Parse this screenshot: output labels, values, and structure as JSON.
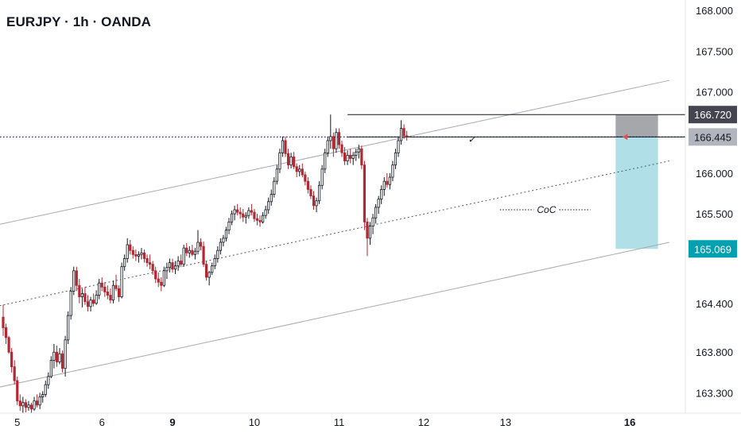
{
  "header": {
    "title": "EURJPY · 1h · OANDA"
  },
  "chart_data": {
    "type": "candlestick",
    "symbol": "EURJPY",
    "timeframe": "1h",
    "broker": "OANDA",
    "ylim": [
      163.05,
      168.05
    ],
    "y_ticks": [
      "168.000",
      "167.500",
      "167.000",
      "166.000",
      "165.500",
      "164.400",
      "163.800",
      "163.300"
    ],
    "x_ticks": [
      {
        "label": "5",
        "bold": false
      },
      {
        "label": "6",
        "bold": false
      },
      {
        "label": "9",
        "bold": true
      },
      {
        "label": "10",
        "bold": false
      },
      {
        "label": "11",
        "bold": false
      },
      {
        "label": "12",
        "bold": false
      },
      {
        "label": "13",
        "bold": false
      },
      {
        "label": "16",
        "bold": true
      }
    ],
    "x_tick_bars": [
      5,
      35,
      60,
      89,
      119,
      149,
      178,
      222
    ],
    "price_levels": [
      {
        "label": "166.720",
        "value": 166.72,
        "bg": "#434651",
        "fg": "#ffffff"
      },
      {
        "label": "166.445",
        "value": 166.445,
        "bg": "#b2b5be",
        "fg": "#131722"
      },
      {
        "label": "165.069",
        "value": 165.069,
        "bg": "#00a0b0",
        "fg": "#ffffff"
      }
    ],
    "annotations": {
      "choc": "CoC",
      "check": "✓"
    },
    "channel": {
      "upper": [
        [
          -4,
          165.35
        ],
        [
          236,
          167.14
        ]
      ],
      "lower": [
        [
          -4,
          163.35
        ],
        [
          236,
          165.15
        ]
      ],
      "mid": [
        [
          -4,
          164.35
        ],
        [
          236,
          166.15
        ]
      ]
    },
    "position_box": {
      "from_bar": 217,
      "to_bar": 232,
      "entry": 166.445,
      "stop": 166.72,
      "target": 165.069
    },
    "colors": {
      "up": "#131722",
      "down": "#b22833",
      "channel": "#a9aab0",
      "dotted_level": "#1a237e",
      "stop_zone": "#a6a7ab",
      "target_zone": "#b0dfe8"
    },
    "candles": [
      [
        164.23,
        164.38,
        164.0,
        164.1
      ],
      [
        164.1,
        164.15,
        163.9,
        163.98
      ],
      [
        163.98,
        164.0,
        163.78,
        163.8
      ],
      [
        163.8,
        163.85,
        163.55,
        163.62
      ],
      [
        163.62,
        163.7,
        163.4,
        163.45
      ],
      [
        163.45,
        163.5,
        163.15,
        163.2
      ],
      [
        163.2,
        163.28,
        163.08,
        163.14
      ],
      [
        163.14,
        163.25,
        163.05,
        163.18
      ],
      [
        163.18,
        163.22,
        163.06,
        163.12
      ],
      [
        163.12,
        163.2,
        163.08,
        163.15
      ],
      [
        163.15,
        163.18,
        163.05,
        163.1
      ],
      [
        163.1,
        163.25,
        163.08,
        163.2
      ],
      [
        163.2,
        163.28,
        163.12,
        163.15
      ],
      [
        163.15,
        163.3,
        163.1,
        163.25
      ],
      [
        163.25,
        163.32,
        163.18,
        163.28
      ],
      [
        163.28,
        163.45,
        163.25,
        163.4
      ],
      [
        163.4,
        163.55,
        163.35,
        163.5
      ],
      [
        163.5,
        163.75,
        163.48,
        163.7
      ],
      [
        163.7,
        163.9,
        163.6,
        163.8
      ],
      [
        163.8,
        163.88,
        163.62,
        163.68
      ],
      [
        163.68,
        163.85,
        163.65,
        163.78
      ],
      [
        163.78,
        163.82,
        163.55,
        163.6
      ],
      [
        163.6,
        164.0,
        163.5,
        163.95
      ],
      [
        163.95,
        164.3,
        163.9,
        164.25
      ],
      [
        164.25,
        164.6,
        164.2,
        164.55
      ],
      [
        164.55,
        164.85,
        164.5,
        164.8
      ],
      [
        164.8,
        164.85,
        164.55,
        164.62
      ],
      [
        164.62,
        164.7,
        164.4,
        164.48
      ],
      [
        164.48,
        164.58,
        164.35,
        164.52
      ],
      [
        164.52,
        164.6,
        164.38,
        164.42
      ],
      [
        164.42,
        164.5,
        164.3,
        164.36
      ],
      [
        164.36,
        164.48,
        164.3,
        164.44
      ],
      [
        164.44,
        164.52,
        164.36,
        164.4
      ],
      [
        164.4,
        164.56,
        164.38,
        164.5
      ],
      [
        164.5,
        164.7,
        164.45,
        164.65
      ],
      [
        164.65,
        164.72,
        164.55,
        164.6
      ],
      [
        164.6,
        164.66,
        164.48,
        164.54
      ],
      [
        164.54,
        164.62,
        164.45,
        164.5
      ],
      [
        164.5,
        164.58,
        164.4,
        164.44
      ],
      [
        164.44,
        164.68,
        164.4,
        164.62
      ],
      [
        164.62,
        164.75,
        164.55,
        164.58
      ],
      [
        164.58,
        164.62,
        164.42,
        164.48
      ],
      [
        164.48,
        164.9,
        164.46,
        164.85
      ],
      [
        164.85,
        165.0,
        164.8,
        164.95
      ],
      [
        164.95,
        165.2,
        164.9,
        165.12
      ],
      [
        165.12,
        165.18,
        165.0,
        165.05
      ],
      [
        165.05,
        165.1,
        164.95,
        165.0
      ],
      [
        165.0,
        165.06,
        164.92,
        164.98
      ],
      [
        164.98,
        165.04,
        164.9,
        165.0
      ],
      [
        165.0,
        165.08,
        164.94,
        165.02
      ],
      [
        165.02,
        165.06,
        164.9,
        164.95
      ],
      [
        164.95,
        165.0,
        164.85,
        164.9
      ],
      [
        164.9,
        165.0,
        164.82,
        164.88
      ],
      [
        164.88,
        164.92,
        164.75,
        164.8
      ],
      [
        164.8,
        164.85,
        164.65,
        164.7
      ],
      [
        164.7,
        164.78,
        164.6,
        164.66
      ],
      [
        164.66,
        164.72,
        164.55,
        164.62
      ],
      [
        164.62,
        164.85,
        164.6,
        164.8
      ],
      [
        164.8,
        164.9,
        164.7,
        164.84
      ],
      [
        164.84,
        164.95,
        164.78,
        164.9
      ],
      [
        164.9,
        164.95,
        164.78,
        164.82
      ],
      [
        164.82,
        164.92,
        164.76,
        164.86
      ],
      [
        164.86,
        164.98,
        164.8,
        164.92
      ],
      [
        164.92,
        165.0,
        164.85,
        164.88
      ],
      [
        164.88,
        165.12,
        164.85,
        165.08
      ],
      [
        165.08,
        165.14,
        164.98,
        165.02
      ],
      [
        165.02,
        165.1,
        164.96,
        165.05
      ],
      [
        165.05,
        165.12,
        164.98,
        165.0
      ],
      [
        165.0,
        165.08,
        164.94,
        165.04
      ],
      [
        165.04,
        165.3,
        165.0,
        165.15
      ],
      [
        165.15,
        165.2,
        165.05,
        165.1
      ],
      [
        165.1,
        165.16,
        164.85,
        164.88
      ],
      [
        164.88,
        164.92,
        164.68,
        164.72
      ],
      [
        164.72,
        164.8,
        164.62,
        164.78
      ],
      [
        164.78,
        164.9,
        164.75,
        164.86
      ],
      [
        164.86,
        165.0,
        164.82,
        164.95
      ],
      [
        164.95,
        165.1,
        164.9,
        165.05
      ],
      [
        165.05,
        165.2,
        165.0,
        165.15
      ],
      [
        165.15,
        165.24,
        165.1,
        165.2
      ],
      [
        165.2,
        165.34,
        165.16,
        165.3
      ],
      [
        165.3,
        165.45,
        165.25,
        165.4
      ],
      [
        165.4,
        165.54,
        165.36,
        165.5
      ],
      [
        165.5,
        165.6,
        165.42,
        165.55
      ],
      [
        165.55,
        165.62,
        165.48,
        165.52
      ],
      [
        165.52,
        165.58,
        165.44,
        165.5
      ],
      [
        165.5,
        165.56,
        165.4,
        165.46
      ],
      [
        165.46,
        165.52,
        165.38,
        165.48
      ],
      [
        165.48,
        165.58,
        165.44,
        165.54
      ],
      [
        165.54,
        165.62,
        165.48,
        165.52
      ],
      [
        165.52,
        165.56,
        165.4,
        165.44
      ],
      [
        165.44,
        165.5,
        165.36,
        165.42
      ],
      [
        165.42,
        165.48,
        165.34,
        165.4
      ],
      [
        165.4,
        165.52,
        165.38,
        165.48
      ],
      [
        165.48,
        165.6,
        165.44,
        165.55
      ],
      [
        165.55,
        165.7,
        165.5,
        165.65
      ],
      [
        165.65,
        165.8,
        165.6,
        165.74
      ],
      [
        165.74,
        165.95,
        165.7,
        165.9
      ],
      [
        165.9,
        166.1,
        165.86,
        166.05
      ],
      [
        166.05,
        166.3,
        166.0,
        166.25
      ],
      [
        166.25,
        166.45,
        166.2,
        166.4
      ],
      [
        166.4,
        166.45,
        166.2,
        166.24
      ],
      [
        166.24,
        166.3,
        166.05,
        166.1
      ],
      [
        166.1,
        166.25,
        166.06,
        166.2
      ],
      [
        166.2,
        166.26,
        166.05,
        166.08
      ],
      [
        166.08,
        166.12,
        165.95,
        166.02
      ],
      [
        166.02,
        166.1,
        165.96,
        166.05
      ],
      [
        166.05,
        166.12,
        165.95,
        165.98
      ],
      [
        165.98,
        166.02,
        165.85,
        165.9
      ],
      [
        165.9,
        165.95,
        165.75,
        165.8
      ],
      [
        165.8,
        165.85,
        165.68,
        165.72
      ],
      [
        165.72,
        165.78,
        165.55,
        165.6
      ],
      [
        165.6,
        165.7,
        165.52,
        165.66
      ],
      [
        165.66,
        165.9,
        165.62,
        165.85
      ],
      [
        165.85,
        166.1,
        165.8,
        166.05
      ],
      [
        166.05,
        166.3,
        166.0,
        166.25
      ],
      [
        166.25,
        166.45,
        166.2,
        166.4
      ],
      [
        166.4,
        166.72,
        166.3,
        166.45
      ],
      [
        166.45,
        166.5,
        166.2,
        166.3
      ],
      [
        166.3,
        166.55,
        166.25,
        166.5
      ],
      [
        166.5,
        166.55,
        166.3,
        166.35
      ],
      [
        166.35,
        166.4,
        166.2,
        166.25
      ],
      [
        166.25,
        166.32,
        166.1,
        166.15
      ],
      [
        166.15,
        166.28,
        166.1,
        166.22
      ],
      [
        166.22,
        166.3,
        166.12,
        166.18
      ],
      [
        166.18,
        166.26,
        166.1,
        166.22
      ],
      [
        166.22,
        166.3,
        166.15,
        166.26
      ],
      [
        166.26,
        166.35,
        166.18,
        166.3
      ],
      [
        166.3,
        166.34,
        166.05,
        166.1
      ],
      [
        166.1,
        166.15,
        165.3,
        165.4
      ],
      [
        165.4,
        165.45,
        164.98,
        165.2
      ],
      [
        165.2,
        165.4,
        165.12,
        165.35
      ],
      [
        165.35,
        165.5,
        165.25,
        165.45
      ],
      [
        165.45,
        165.62,
        165.38,
        165.58
      ],
      [
        165.58,
        165.72,
        165.5,
        165.68
      ],
      [
        165.68,
        165.85,
        165.62,
        165.8
      ],
      [
        165.8,
        165.95,
        165.72,
        165.9
      ],
      [
        165.9,
        166.0,
        165.82,
        165.86
      ],
      [
        165.86,
        166.0,
        165.8,
        165.95
      ],
      [
        165.95,
        166.15,
        165.9,
        166.1
      ],
      [
        166.1,
        166.3,
        166.05,
        166.25
      ],
      [
        166.25,
        166.45,
        166.2,
        166.4
      ],
      [
        166.4,
        166.65,
        166.35,
        166.55
      ],
      [
        166.55,
        166.6,
        166.42,
        166.46
      ],
      [
        166.46,
        166.52,
        166.4,
        166.45
      ]
    ]
  }
}
